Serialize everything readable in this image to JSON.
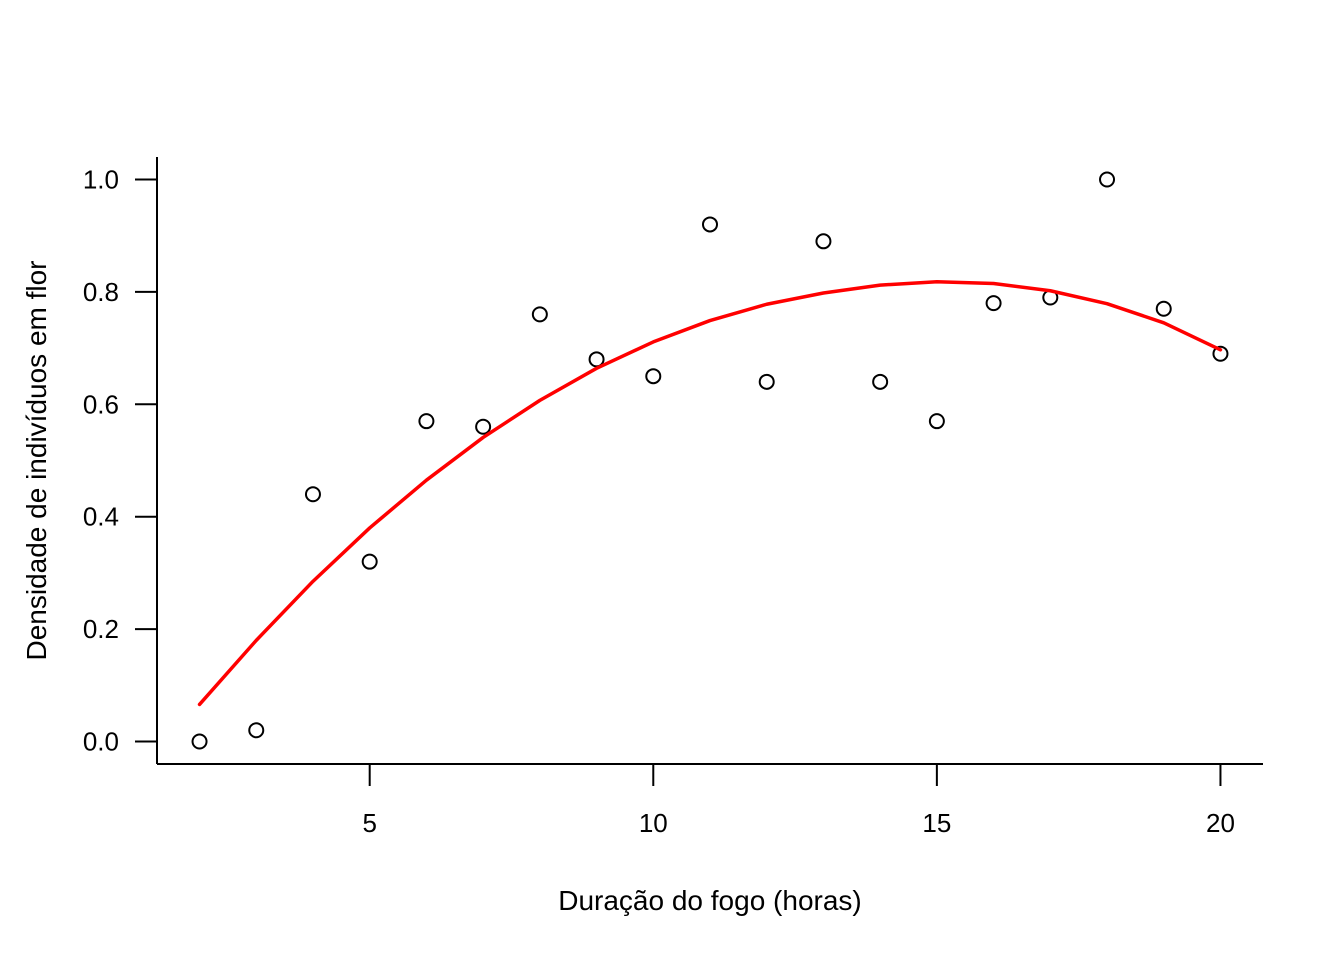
{
  "chart_data": {
    "type": "scatter",
    "title": "",
    "xlabel": "Duração do fogo (horas)",
    "ylabel": "Densidade de indivíduos em flor",
    "xlim": [
      1.25,
      20.75
    ],
    "ylim": [
      -0.04,
      1.04
    ],
    "x_ticks": [
      5,
      10,
      15,
      20
    ],
    "x_tick_labels": [
      "5",
      "10",
      "15",
      "20"
    ],
    "y_ticks": [
      0.0,
      0.2,
      0.4,
      0.6,
      0.8,
      1.0
    ],
    "y_tick_labels": [
      "0.0",
      "0.2",
      "0.4",
      "0.6",
      "0.8",
      "1.0"
    ],
    "grid": false,
    "legend": "none",
    "series": [
      {
        "type": "scatter",
        "marker": "open-circle",
        "color": "#000000",
        "x": [
          2,
          3,
          4,
          5,
          6,
          7,
          8,
          9,
          10,
          11,
          12,
          13,
          14,
          15,
          16,
          17,
          18,
          19,
          20
        ],
        "y": [
          0.0,
          0.02,
          0.44,
          0.32,
          0.57,
          0.56,
          0.76,
          0.68,
          0.65,
          0.92,
          0.64,
          0.89,
          0.64,
          0.57,
          0.78,
          0.79,
          1.0,
          0.77,
          0.69
        ]
      },
      {
        "type": "line",
        "color": "#ff0000",
        "x": [
          2,
          3,
          4,
          5,
          6,
          7,
          8,
          9,
          10,
          11,
          12,
          13,
          14,
          15,
          16,
          17,
          18,
          19,
          20
        ],
        "y": [
          0.066,
          0.18,
          0.285,
          0.38,
          0.465,
          0.541,
          0.607,
          0.664,
          0.711,
          0.749,
          0.778,
          0.798,
          0.812,
          0.818,
          0.815,
          0.802,
          0.779,
          0.745,
          0.697
        ]
      }
    ]
  }
}
